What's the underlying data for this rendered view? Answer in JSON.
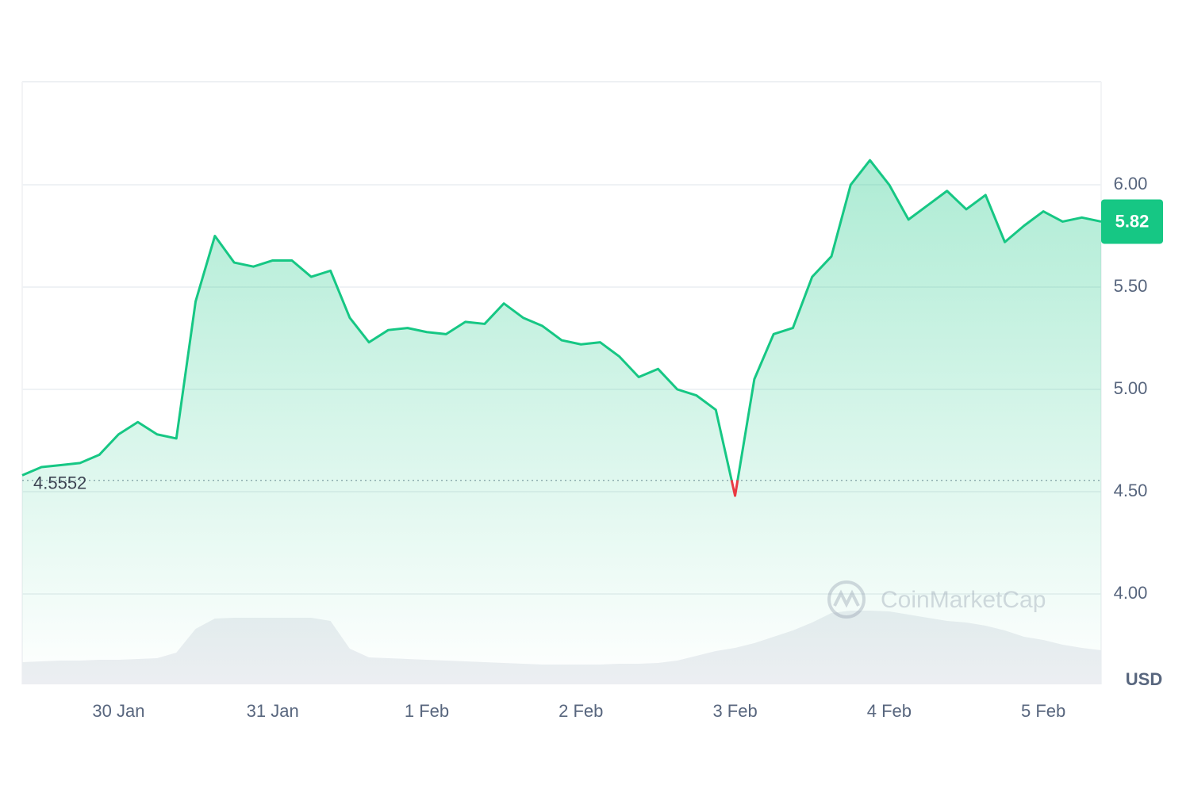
{
  "chart_data": {
    "type": "line",
    "categories": [
      null,
      null,
      null,
      null,
      null,
      "30 Jan",
      null,
      null,
      null,
      null,
      null,
      null,
      null,
      "31 Jan",
      null,
      null,
      null,
      null,
      null,
      null,
      null,
      "1 Feb",
      null,
      null,
      null,
      null,
      null,
      null,
      null,
      "2 Feb",
      null,
      null,
      null,
      null,
      null,
      null,
      null,
      "3 Feb",
      null,
      null,
      null,
      null,
      null,
      null,
      null,
      "4 Feb",
      null,
      null,
      null,
      null,
      null,
      null,
      null,
      "5 Feb",
      null,
      null,
      null
    ],
    "series": [
      {
        "name": "Price",
        "color": "#16c784",
        "values": [
          4.58,
          4.62,
          4.63,
          4.64,
          4.68,
          4.78,
          4.84,
          4.78,
          4.76,
          5.43,
          5.75,
          5.62,
          5.6,
          5.63,
          5.63,
          5.55,
          5.58,
          5.35,
          5.23,
          5.29,
          5.3,
          5.28,
          5.27,
          5.33,
          5.32,
          5.42,
          5.35,
          5.31,
          5.24,
          5.22,
          5.23,
          5.16,
          5.06,
          5.1,
          5.0,
          4.97,
          4.9,
          4.48,
          5.05,
          5.27,
          5.3,
          5.55,
          5.65,
          6.0,
          6.12,
          6.0,
          5.83,
          5.9,
          5.97,
          5.88,
          5.95,
          5.72,
          5.8,
          5.87,
          5.82,
          5.84,
          5.82
        ]
      }
    ],
    "volume": [
      28,
      29,
      30,
      30,
      31,
      31,
      32,
      33,
      40,
      70,
      83,
      84,
      84,
      84,
      84,
      84,
      80,
      45,
      34,
      33,
      32,
      31,
      30,
      29,
      28,
      27,
      26,
      25,
      25,
      25,
      25,
      26,
      26,
      27,
      30,
      36,
      42,
      46,
      52,
      60,
      68,
      78,
      90,
      93,
      93,
      92,
      88,
      84,
      80,
      78,
      74,
      68,
      60,
      56,
      50,
      46,
      43
    ],
    "reference_value": 4.5552,
    "last_price": 5.82,
    "below_reference_color": "#ea3943",
    "ylim": [
      3.558,
      6.504
    ],
    "yticks": [
      {
        "value": 4,
        "label": "4.00"
      },
      {
        "value": 4.5,
        "label": "4.50"
      },
      {
        "value": 5,
        "label": "5.00"
      },
      {
        "value": 5.5,
        "label": "5.50"
      },
      {
        "value": 6,
        "label": "6.00"
      }
    ],
    "unit_label": "USD",
    "watermark": "CoinMarketCap",
    "grid": true
  }
}
